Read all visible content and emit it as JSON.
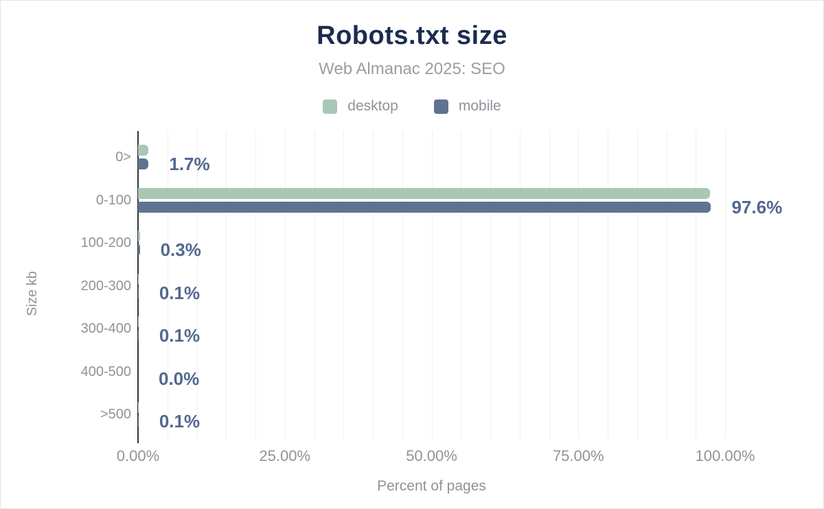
{
  "figure": {
    "title": "Robots.txt size",
    "subtitle": "Web Almanac 2025: SEO"
  },
  "colors": {
    "title": "#1b2d4f",
    "subtitle": "#9a9da3",
    "desktop": "#a8c8b5",
    "mobile": "#5f7390",
    "value": "#52688f",
    "axis_text": "#8f9298",
    "axis_line": "#333333",
    "gridline": "#efefef"
  },
  "chart_data": {
    "type": "bar",
    "orientation": "horizontal",
    "title": "Robots.txt size",
    "subtitle": "Web Almanac 2025: SEO",
    "categories": [
      "0>",
      "0-100",
      "100-200",
      "200-300",
      "300-400",
      "400-500",
      ">500"
    ],
    "series": [
      {
        "name": "desktop",
        "color": "#a8c8b5",
        "values": [
          1.8,
          97.4,
          0.3,
          0.1,
          0.1,
          0.0,
          0.1
        ]
      },
      {
        "name": "mobile",
        "color": "#5f7390",
        "values": [
          1.7,
          97.6,
          0.3,
          0.1,
          0.1,
          0.0,
          0.1
        ]
      }
    ],
    "value_labels": [
      "1.7%",
      "97.6%",
      "0.3%",
      "0.1%",
      "0.1%",
      "0.0%",
      "0.1%"
    ],
    "labels_follow_series": "mobile",
    "xlabel": "Percent of pages",
    "ylabel": "Size kb",
    "x_ticks": [
      "0.00%",
      "25.00%",
      "50.00%",
      "75.00%",
      "100.00%"
    ],
    "x_tick_values": [
      0,
      25,
      50,
      75,
      100
    ],
    "xlim": [
      0,
      100
    ],
    "grid": "vertical, minor every 5%",
    "legend_position": "top-center"
  }
}
